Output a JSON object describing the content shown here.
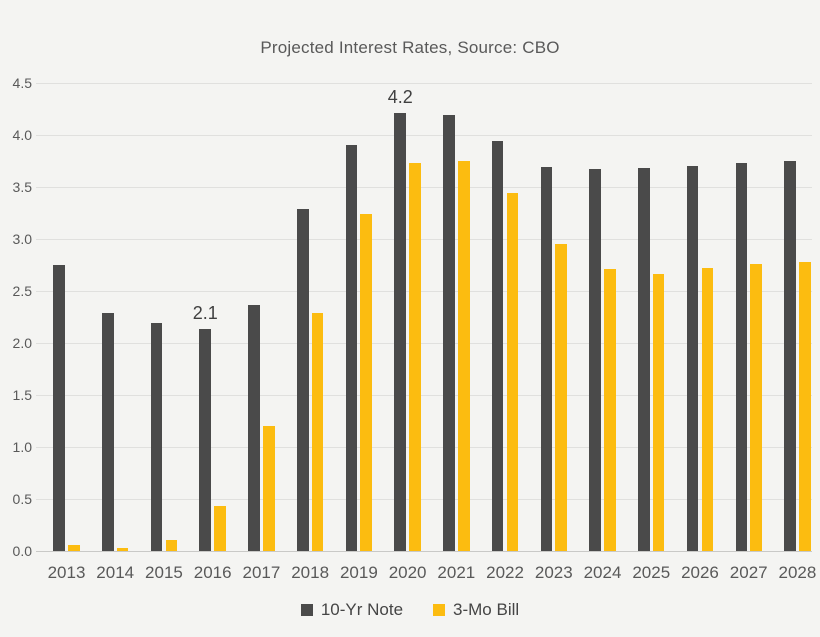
{
  "chart_data": {
    "type": "bar",
    "title": "Projected Interest Rates, Source: CBO",
    "categories": [
      "2013",
      "2014",
      "2015",
      "2016",
      "2017",
      "2018",
      "2019",
      "2020",
      "2021",
      "2022",
      "2023",
      "2024",
      "2025",
      "2026",
      "2027",
      "2028"
    ],
    "series": [
      {
        "name": "10-Yr Note",
        "color": "#4a4a4a",
        "values": [
          2.75,
          2.29,
          2.19,
          2.13,
          2.37,
          3.29,
          3.9,
          4.21,
          4.19,
          3.94,
          3.69,
          3.67,
          3.68,
          3.7,
          3.73,
          3.75
        ]
      },
      {
        "name": "3-Mo Bill",
        "color": "#fcbc10",
        "values": [
          0.06,
          0.03,
          0.11,
          0.43,
          1.2,
          2.29,
          3.24,
          3.73,
          3.75,
          3.44,
          2.95,
          2.71,
          2.66,
          2.72,
          2.76,
          2.78
        ]
      }
    ],
    "ylim": [
      0,
      4.5
    ],
    "ytick_step": 0.5,
    "yticks": [
      "0.0",
      "0.5",
      "1.0",
      "1.5",
      "2.0",
      "2.5",
      "3.0",
      "3.5",
      "4.0",
      "4.5"
    ],
    "grid": true,
    "legend_position": "bottom",
    "annotations": [
      {
        "text": "2.1",
        "category": "2016",
        "series": "10-Yr Note"
      },
      {
        "text": "4.2",
        "category": "2020",
        "series": "10-Yr Note"
      }
    ]
  },
  "colors": {
    "background": "#f4f4f2",
    "gridline": "#e0e0de",
    "axis_line": "#c9c9c7",
    "text": "#595959",
    "annotation_text": "#404040",
    "legend_text": "#454545"
  }
}
